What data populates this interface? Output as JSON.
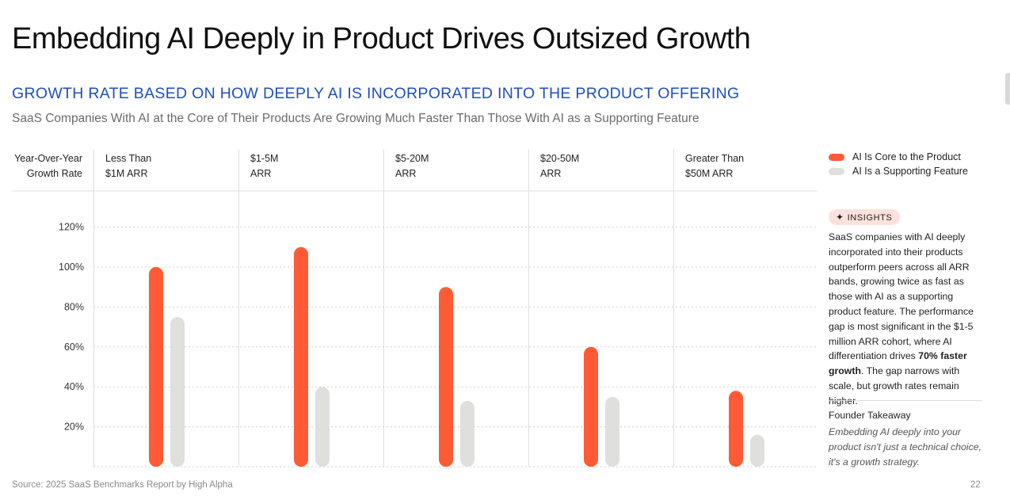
{
  "title": "Embedding AI Deeply in Product Drives Outsized Growth",
  "subtitle": "GROWTH RATE BASED ON HOW DEEPLY AI IS INCORPORATED INTO THE PRODUCT OFFERING",
  "description": "SaaS Companies With AI at the Core of Their Products Are Growing Much Faster Than Those With AI as a Supporting Feature",
  "legend": [
    {
      "label": "AI Is Core to the Product",
      "color": "#ff5a36"
    },
    {
      "label": "AI Is a Supporting Feature",
      "color": "#dfdfdd"
    }
  ],
  "insights": {
    "badge": "INSIGHTS",
    "text_before": "SaaS companies with AI deeply incorporated into their products outperform peers across all ARR bands, growing twice as fast as those with AI as a supporting product feature. The performance gap is most significant in the $1-5 million ARR cohort, where AI differentiation drives ",
    "text_bold": "70% faster growth",
    "text_after": ". The gap narrows with scale, but growth rates remain higher."
  },
  "founder_takeaway": {
    "title": "Founder Takeaway",
    "text": "Embedding AI deeply into your product isn't just a technical choice, it's a growth strategy."
  },
  "source": "Source: 2025 SaaS Benchmarks Report by High Alpha",
  "page_number": "22",
  "chart_data": {
    "type": "bar",
    "ylabel_lines": [
      "Year-Over-Year",
      "Growth Rate"
    ],
    "categories": [
      [
        "Less Than",
        "$1M ARR"
      ],
      [
        "$1-5M",
        "ARR"
      ],
      [
        "$5-20M",
        "ARR"
      ],
      [
        "$20-50M",
        "ARR"
      ],
      [
        "Greater Than",
        "$50M ARR"
      ]
    ],
    "yticks": [
      20,
      40,
      60,
      80,
      100,
      120
    ],
    "ytick_labels": [
      "20%",
      "40%",
      "60%",
      "80%",
      "100%",
      "120%"
    ],
    "ylim": [
      0,
      120
    ],
    "series": [
      {
        "name": "AI Is Core to the Product",
        "color": "#ff5a36",
        "values": [
          100,
          110,
          90,
          60,
          38
        ]
      },
      {
        "name": "AI Is a Supporting Feature",
        "color": "#dfdfdd",
        "values": [
          75,
          40,
          33,
          35,
          16
        ]
      }
    ]
  }
}
